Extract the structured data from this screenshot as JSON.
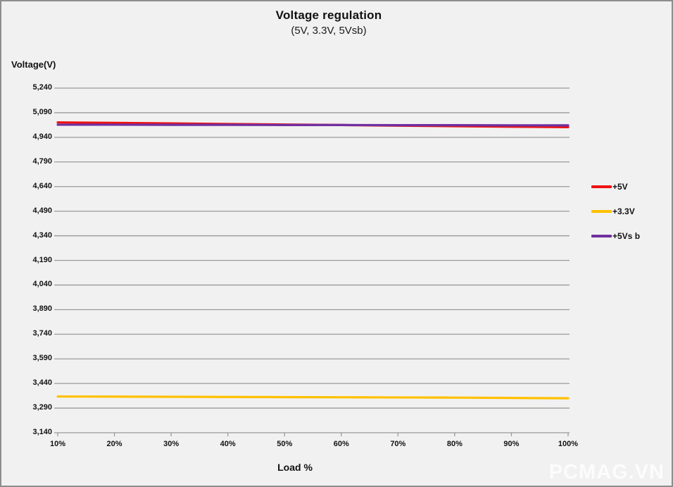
{
  "title": "Voltage regulation",
  "subtitle": "(5V, 3.3V, 5Vsb)",
  "watermark": "PCMAG.VN",
  "chart_data": {
    "type": "line",
    "title": "Voltage regulation",
    "subtitle": "(5V, 3.3V, 5Vsb)",
    "xlabel": "Load %",
    "ylabel": "Voltage(V)",
    "x_tick_labels": [
      "10%",
      "20%",
      "30%",
      "40%",
      "50%",
      "60%",
      "70%",
      "80%",
      "90%",
      "100%"
    ],
    "x_values": [
      10,
      20,
      30,
      40,
      50,
      60,
      70,
      80,
      90,
      100
    ],
    "y_ticks": [
      3140,
      3290,
      3440,
      3590,
      3740,
      3890,
      4040,
      4190,
      4340,
      4490,
      4640,
      4790,
      4940,
      5090,
      5240
    ],
    "ylim": [
      3140,
      5240
    ],
    "grid": true,
    "legend_position": "right",
    "series": [
      {
        "name": "+5V",
        "color": "#ee1111",
        "values": [
          5031,
          5028,
          5025,
          5021,
          5018,
          5015,
          5011,
          5008,
          5005,
          5002
        ]
      },
      {
        "name": "+3.3V",
        "color": "#ffc000",
        "values": [
          3361,
          3360,
          3359,
          3358,
          3357,
          3356,
          3355,
          3354,
          3352,
          3350
        ]
      },
      {
        "name": "+5Vs b",
        "color": "#7030a0",
        "values": [
          5017,
          5017,
          5016,
          5016,
          5015,
          5015,
          5014,
          5014,
          5013,
          5013
        ]
      }
    ],
    "colors": {
      "grid": "#9a9a9a",
      "background": "#f1f1f1",
      "border": "#8e8e8e",
      "text": "#111111"
    }
  }
}
